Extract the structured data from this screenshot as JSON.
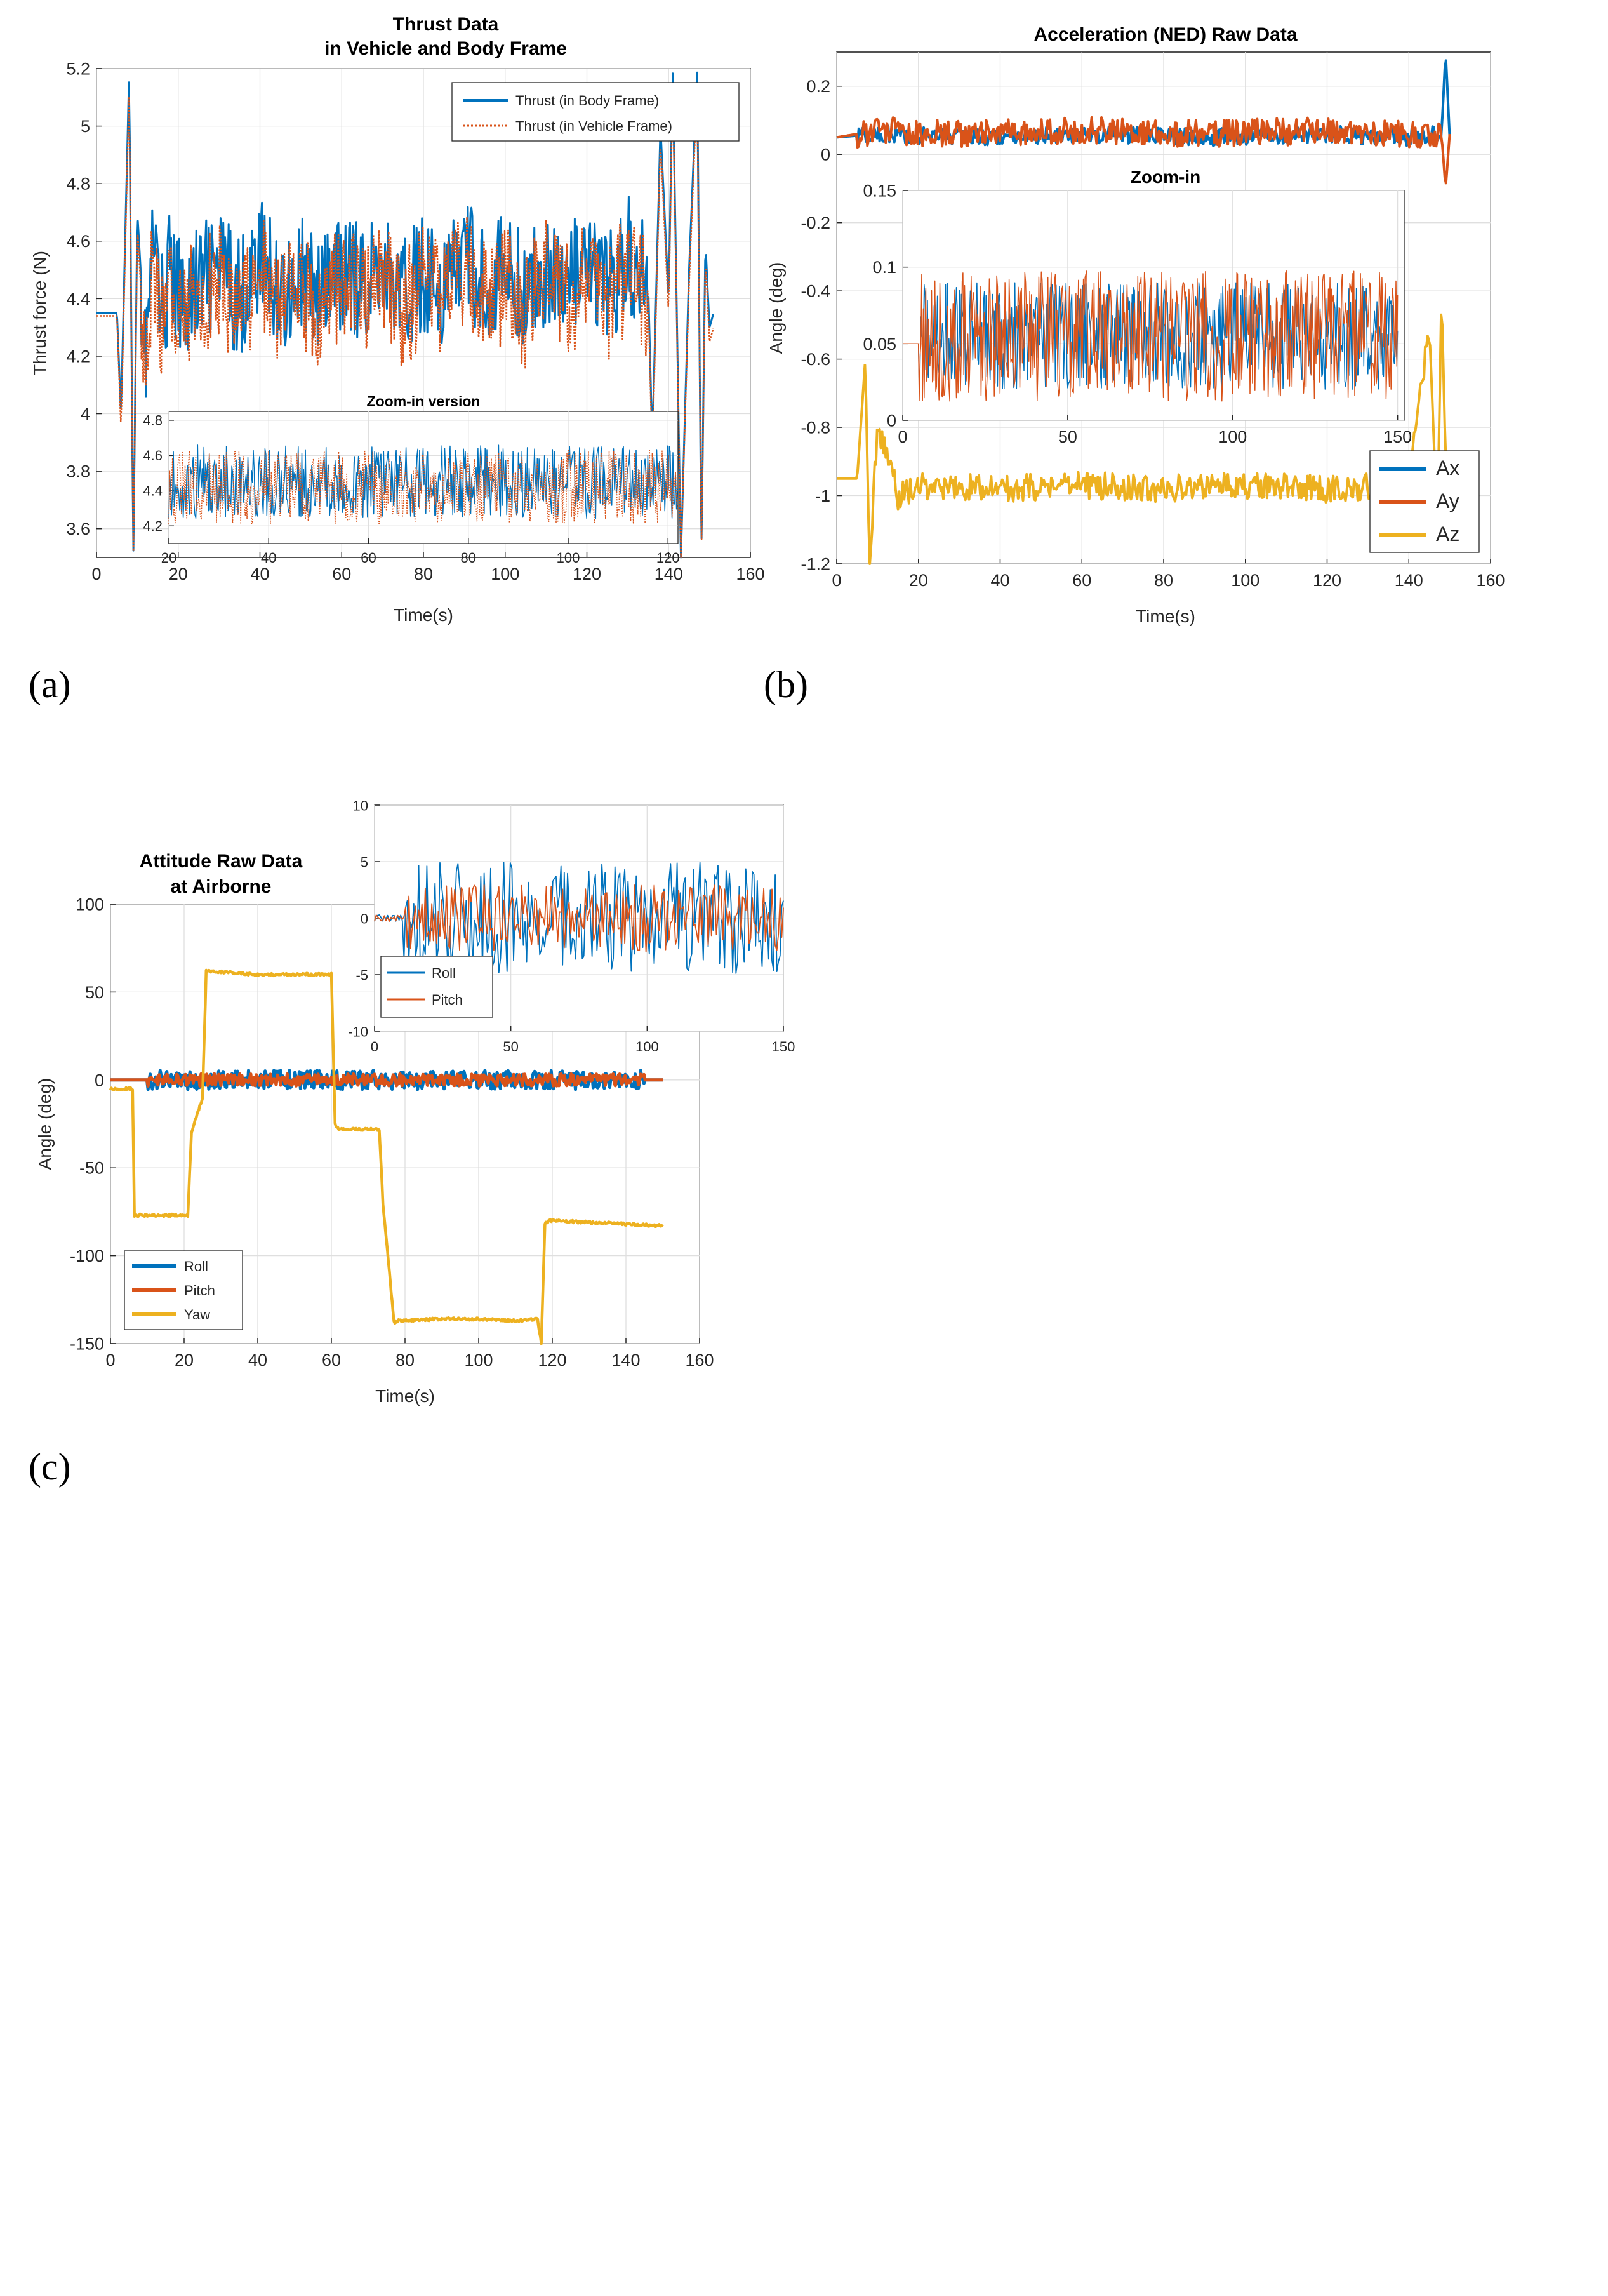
{
  "colors": {
    "blue": "#0072BD",
    "orange": "#D95319",
    "yellow": "#EDB120"
  },
  "panels": [
    {
      "letter": "(a)",
      "chart_data": {
        "type": "line",
        "title": "Thrust Data",
        "subtitle": "in Vehicle and Body Frame",
        "xlabel": "Time(s)",
        "ylabel": "Thrust force (N)",
        "xlim": [
          0,
          160
        ],
        "ylim": [
          3.5,
          5.2
        ],
        "xticks": [
          "0",
          "20",
          "40",
          "60",
          "80",
          "100",
          "120",
          "140",
          "160"
        ],
        "yticks": [
          "3.6",
          "3.8",
          "4",
          "4.2",
          "4.4",
          "4.6",
          "4.8",
          "5",
          "5.2"
        ],
        "grid": true,
        "legend_position": "top-right",
        "series": [
          {
            "name": "Thrust (in Body Frame)",
            "color": "#0072BD",
            "style": "solid",
            "x": [
              0,
              5,
              6,
              7,
              8,
              9,
              10,
              12,
              14,
              16,
              18,
              20,
              25,
              30,
              35,
              40,
              45,
              50,
              55,
              60,
              65,
              70,
              75,
              80,
              85,
              90,
              95,
              100,
              105,
              110,
              115,
              120,
              125,
              130,
              135,
              136,
              138,
              140,
              141,
              143,
              145,
              147,
              148,
              149,
              150,
              151
            ],
            "y": [
              4.35,
              4.35,
              4.0,
              4.6,
              5.2,
              3.5,
              4.7,
              4.2,
              4.6,
              4.35,
              4.5,
              4.4,
              4.45,
              4.5,
              4.4,
              4.55,
              4.42,
              4.48,
              4.4,
              4.5,
              4.45,
              4.52,
              4.4,
              4.5,
              4.42,
              4.55,
              4.45,
              4.5,
              4.4,
              4.52,
              4.45,
              4.5,
              4.42,
              4.55,
              4.45,
              3.9,
              5.0,
              4.4,
              5.2,
              3.5,
              4.5,
              5.2,
              3.5,
              4.6,
              4.3,
              4.35
            ]
          },
          {
            "name": "Thrust (in Vehicle Frame)",
            "color": "#D95319",
            "style": "dotted",
            "x": [
              0,
              5,
              6,
              7,
              8,
              9,
              10,
              12,
              14,
              16,
              18,
              20,
              25,
              30,
              35,
              40,
              45,
              50,
              55,
              60,
              65,
              70,
              75,
              80,
              85,
              90,
              95,
              100,
              105,
              110,
              115,
              120,
              125,
              130,
              135,
              136,
              138,
              140,
              141,
              143,
              145,
              147,
              148,
              149,
              150,
              151
            ],
            "y": [
              4.34,
              4.34,
              3.95,
              4.55,
              5.15,
              3.5,
              4.65,
              4.15,
              4.55,
              4.3,
              4.45,
              4.35,
              4.4,
              4.45,
              4.35,
              4.5,
              4.37,
              4.43,
              4.35,
              4.45,
              4.4,
              4.47,
              4.35,
              4.45,
              4.37,
              4.5,
              4.4,
              4.45,
              4.35,
              4.47,
              4.4,
              4.45,
              4.37,
              4.5,
              4.4,
              3.85,
              4.95,
              4.35,
              5.15,
              3.5,
              4.45,
              5.15,
              3.5,
              4.55,
              4.25,
              4.3
            ]
          }
        ],
        "inset": {
          "title": "Zoom-in version",
          "xlim": [
            20,
            122
          ],
          "ylim": [
            4.1,
            4.85
          ],
          "xticks": [
            "20",
            "40",
            "60",
            "80",
            "100",
            "120"
          ],
          "yticks": [
            "4.2",
            "4.4",
            "4.6",
            "4.8"
          ]
        }
      }
    },
    {
      "letter": "(b)",
      "chart_data": {
        "type": "line",
        "title": "Acceleration (NED) Raw Data",
        "xlabel": "Time(s)",
        "ylabel": "Angle (deg)",
        "xlim": [
          0,
          160
        ],
        "ylim": [
          -1.2,
          0.3
        ],
        "xticks": [
          "0",
          "20",
          "40",
          "60",
          "80",
          "100",
          "120",
          "140",
          "160"
        ],
        "yticks": [
          "-1.2",
          "-1",
          "-0.8",
          "-0.6",
          "-0.4",
          "-0.2",
          "0",
          "0.2"
        ],
        "grid": true,
        "legend_position": "bottom-right",
        "series": [
          {
            "name": "Ax",
            "color": "#0072BD",
            "x": [
              0,
              10,
              30,
              60,
              90,
              120,
              140,
              148,
              149,
              150
            ],
            "y": [
              0.05,
              0.06,
              0.05,
              0.06,
              0.05,
              0.06,
              0.05,
              0.06,
              0.3,
              0.05
            ]
          },
          {
            "name": "Ay",
            "color": "#D95319",
            "x": [
              0,
              10,
              30,
              60,
              90,
              120,
              140,
              148,
              149,
              150
            ],
            "y": [
              0.05,
              0.07,
              0.06,
              0.07,
              0.06,
              0.07,
              0.06,
              0.06,
              -0.1,
              0.06
            ]
          },
          {
            "name": "Az",
            "color": "#EDB120",
            "x": [
              0,
              5,
              7,
              8,
              10,
              15,
              20,
              40,
              60,
              80,
              100,
              120,
              140,
              145,
              147,
              148,
              149,
              150
            ],
            "y": [
              -0.95,
              -0.95,
              -0.6,
              -1.2,
              -0.8,
              -1.0,
              -0.97,
              -0.98,
              -0.97,
              -0.98,
              -0.97,
              -0.98,
              -0.97,
              -0.5,
              -1.1,
              -0.4,
              -0.9,
              -0.95
            ]
          }
        ],
        "inset": {
          "title": "Zoom-in",
          "xlim": [
            0,
            152
          ],
          "ylim": [
            0,
            0.15
          ],
          "xticks": [
            "0",
            "50",
            "100",
            "150"
          ],
          "yticks": [
            "0",
            "0.05",
            "0.1",
            "0.15"
          ]
        }
      }
    },
    {
      "letter": "(c)",
      "chart_data": {
        "type": "line",
        "title": "Attitude Raw Data",
        "subtitle": "at Airborne",
        "xlabel": "Time(s)",
        "ylabel": "Angle (deg)",
        "xlim": [
          0,
          160
        ],
        "ylim": [
          -150,
          100
        ],
        "xticks": [
          "0",
          "20",
          "40",
          "60",
          "80",
          "100",
          "120",
          "140",
          "160"
        ],
        "yticks": [
          "-150",
          "-100",
          "-50",
          "0",
          "50",
          "100"
        ],
        "grid": true,
        "legend_position": "bottom-left",
        "series": [
          {
            "name": "Roll",
            "color": "#0072BD",
            "x": [
              0,
              150
            ],
            "y": [
              0,
              0
            ]
          },
          {
            "name": "Pitch",
            "color": "#D95319",
            "x": [
              0,
              150
            ],
            "y": [
              0,
              0
            ]
          },
          {
            "name": "Yaw",
            "color": "#EDB120",
            "x": [
              0,
              6,
              6.5,
              21,
              22,
              25,
              26,
              40,
              60,
              61,
              62,
              73,
              74,
              77,
              78,
              90,
              100,
              110,
              116,
              117,
              118,
              119,
              140,
              150
            ],
            "y": [
              -5,
              -5,
              -77,
              -77,
              -30,
              -10,
              62,
              60,
              60,
              -25,
              -28,
              -28,
              -70,
              -138,
              -137,
              -136,
              -136,
              -137,
              -136,
              -150,
              -82,
              -80,
              -82,
              -83
            ]
          }
        ],
        "inset": {
          "xlim": [
            0,
            150
          ],
          "ylim": [
            -10,
            10
          ],
          "xticks": [
            "0",
            "50",
            "100",
            "150"
          ],
          "yticks": [
            "-10",
            "-5",
            "0",
            "5",
            "10"
          ],
          "legend_position": "bottom-left",
          "series_names": [
            "Roll",
            "Pitch"
          ]
        }
      }
    }
  ]
}
